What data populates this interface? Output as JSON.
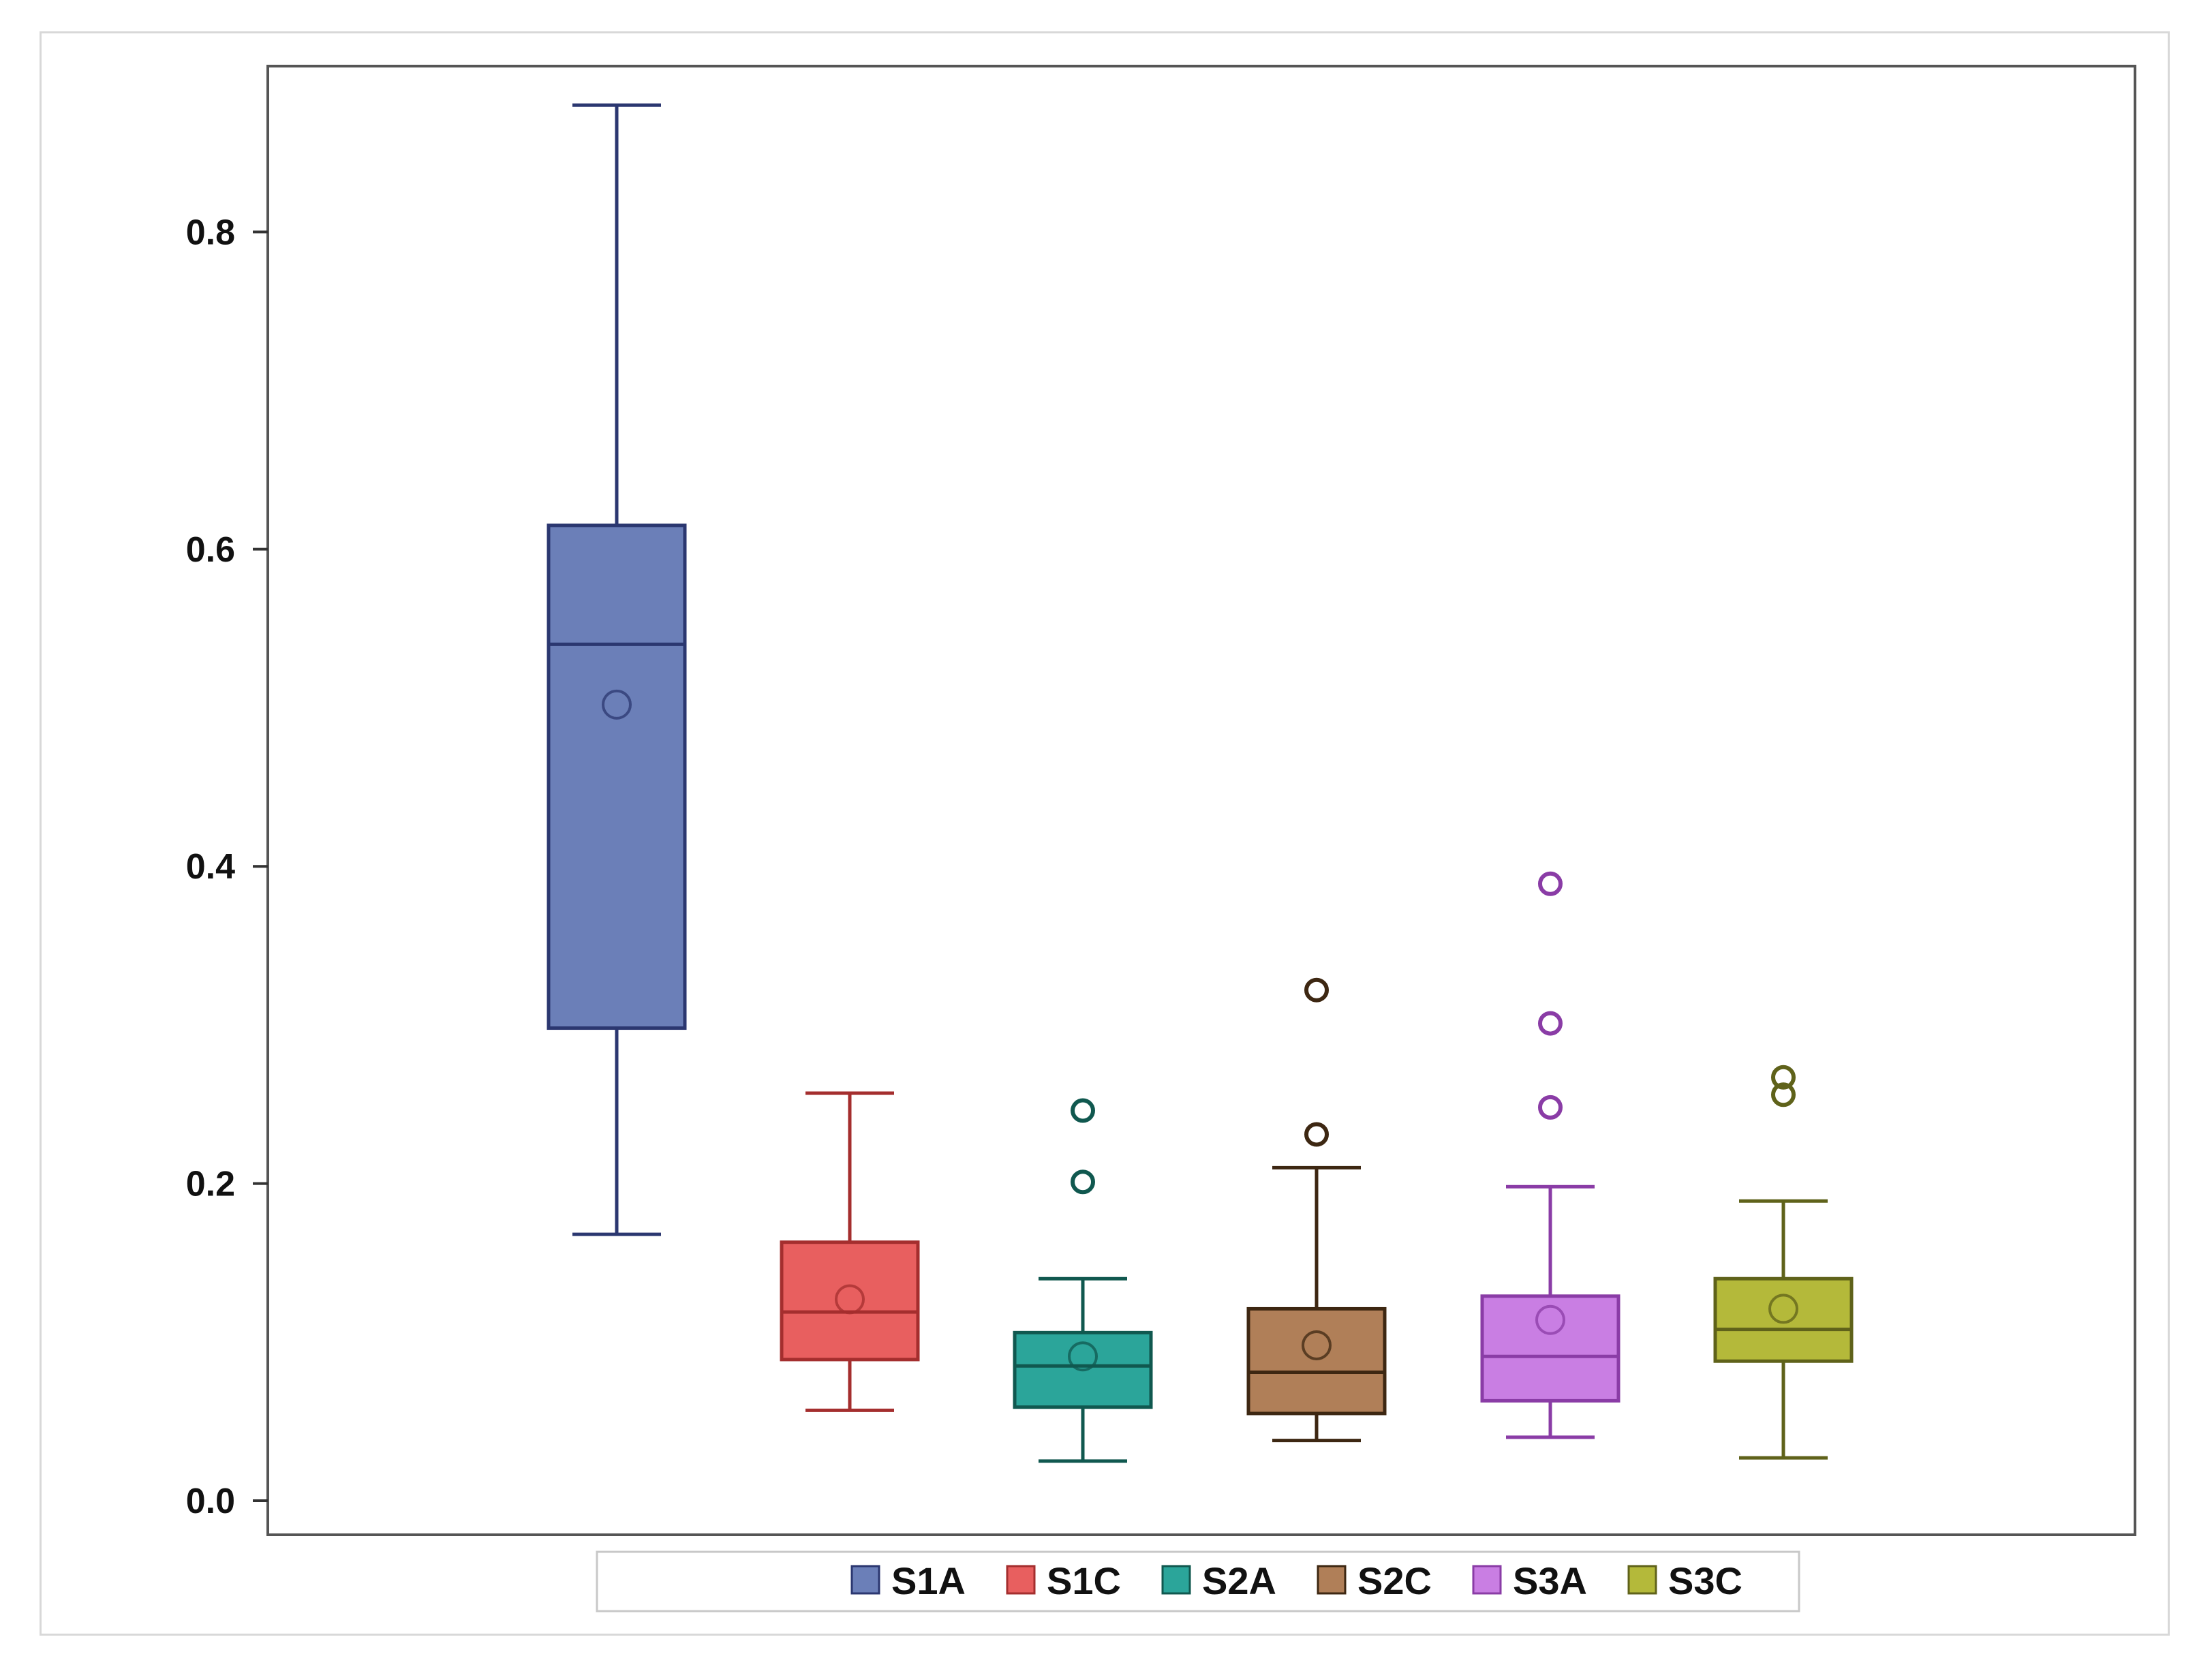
{
  "chart_data": {
    "type": "boxplot",
    "title": "",
    "xlabel": "",
    "ylabel": "",
    "ylim": [
      0.0,
      0.9
    ],
    "yticks": [
      0.0,
      0.2,
      0.4,
      0.6,
      0.8
    ],
    "ytick_labels": [
      "0.0",
      "0.2",
      "0.4",
      "0.6",
      "0.8"
    ],
    "legend_position": "bottom",
    "series": [
      {
        "name": "S1A",
        "color": "#6b7fb8",
        "edge": "#2b3770",
        "min": 0.168,
        "q1": 0.298,
        "median": 0.54,
        "q3": 0.615,
        "max": 0.88,
        "mean": 0.502,
        "outliers": []
      },
      {
        "name": "S1C",
        "color": "#e85f5f",
        "edge": "#a42e2e",
        "min": 0.057,
        "q1": 0.089,
        "median": 0.119,
        "q3": 0.163,
        "max": 0.257,
        "mean": 0.127,
        "outliers": []
      },
      {
        "name": "S2A",
        "color": "#2ba59a",
        "edge": "#10584f",
        "min": 0.025,
        "q1": 0.059,
        "median": 0.085,
        "q3": 0.106,
        "max": 0.14,
        "mean": 0.091,
        "outliers": [
          0.201,
          0.246
        ]
      },
      {
        "name": "S2C",
        "color": "#b07f58",
        "edge": "#3d2712",
        "min": 0.038,
        "q1": 0.055,
        "median": 0.081,
        "q3": 0.121,
        "max": 0.21,
        "mean": 0.098,
        "outliers": [
          0.231,
          0.322
        ]
      },
      {
        "name": "S3A",
        "color": "#c97ee3",
        "edge": "#8a3ca6",
        "min": 0.04,
        "q1": 0.063,
        "median": 0.091,
        "q3": 0.129,
        "max": 0.198,
        "mean": 0.114,
        "outliers": [
          0.248,
          0.301,
          0.389
        ]
      },
      {
        "name": "S3C",
        "color": "#b4b93a",
        "edge": "#5f621a",
        "min": 0.027,
        "q1": 0.088,
        "median": 0.108,
        "q3": 0.14,
        "max": 0.189,
        "mean": 0.121,
        "outliers": [
          0.256,
          0.267
        ]
      }
    ]
  }
}
